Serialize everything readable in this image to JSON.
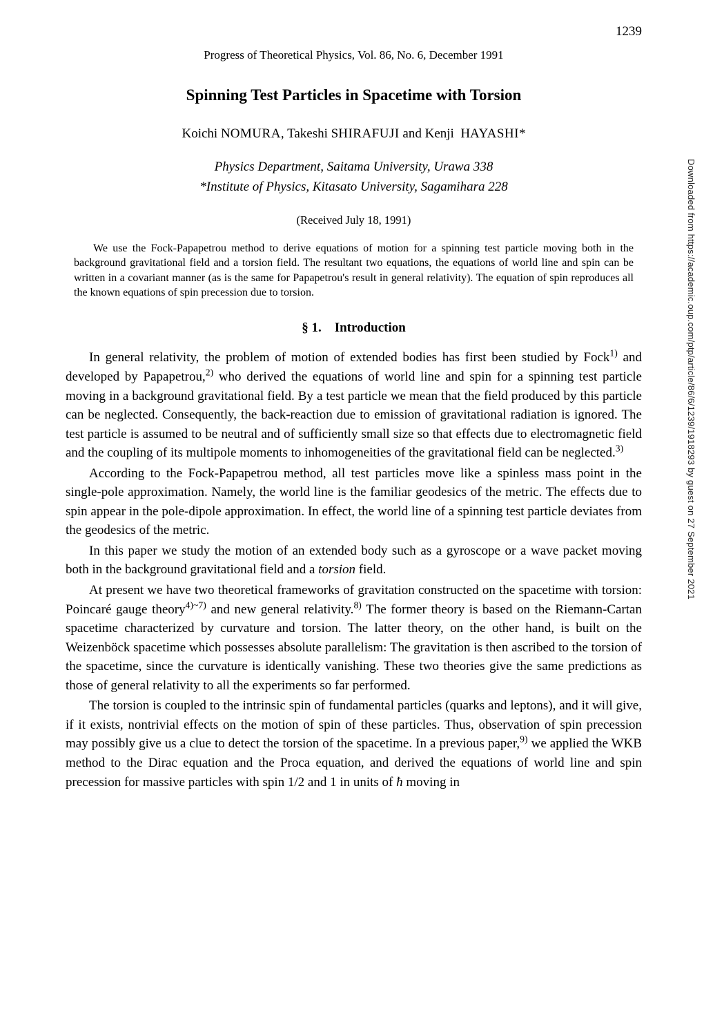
{
  "page_number": "1239",
  "journal_line": "Progress of Theoretical Physics, Vol. 86, No. 6, December 1991",
  "title": "Spinning Test Particles in Spacetime with Torsion",
  "authors_html": "Koichi N<span class='smallcaps'>OMURA</span>, Takeshi S<span class='smallcaps'>HIRAFUJI</span> and Kenji&nbsp;&nbsp;H<span class='smallcaps'>AYASHI</span>*",
  "affiliation1": "Physics Department, Saitama University, Urawa 338",
  "affiliation2": "*Institute of Physics, Kitasato University, Sagamihara 228",
  "received": "(Received July 18, 1991)",
  "abstract": "We use the Fock-Papapetrou method to derive equations of motion for a spinning test particle moving both in the background gravitational field and a torsion field. The resultant two equations, the equations of world line and spin can be written in a covariant manner (as is the same for Papapetrou's result in general relativity). The equation of spin reproduces all the known equations of spin precession due to torsion.",
  "section_heading": "§ 1. Introduction",
  "para1_html": "In general relativity, the problem of motion of extended bodies has first been studied by Fock<sup>1)</sup> and developed by Papapetrou,<sup>2)</sup> who derived the equations of world line and spin for a spinning test particle moving in a background gravitational field. By a test particle we mean that the field produced by this particle can be neglected. Consequently, the back-reaction due to emission of gravitational radiation is ignored. The test particle is assumed to be neutral and of sufficiently small size so that effects due to electromagnetic field and the coupling of its multipole moments to in­homogeneities of the gravitational field can be neglected.<sup>3)</sup>",
  "para2_html": "According to the Fock-Papapetrou method, all test particles move like a spinless mass point in the single-pole approximation. Namely, the world line is the familiar geodesics of the metric. The effects due to spin appear in the pole-dipole approxima­tion. In effect, the world line of a spinning test particle deviates from the geodesics of the metric.",
  "para3_html": "In this paper we study the motion of an extended body such as a gyroscope or a wave packet moving both in the background gravitational field and a <i>torsion</i> field.",
  "para4_html": "At present we have two theoretical frameworks of gravitation constructed on the spacetime with torsion: Poincaré gauge theory<sup>4)~7)</sup> and new general relativity.<sup>8)</sup> The former theory is based on the Riemann-Cartan spacetime characterized by curvature and torsion. The latter theory, on the other hand, is built on the Weizenböck spacetime which possesses absolute parallelism: The gravitation is then ascribed to the torsion of the spacetime, since the curvature is identically vanishing. These two theories give the same predictions as those of general relativity to all the experiments so far performed.",
  "para5_html": "The torsion is coupled to the intrinsic spin of fundamental particles (quarks and leptons), and it will give, if it exists, nontrivial effects on the motion of spin of these particles. Thus, observation of spin precession may possibly give us a clue to detect the torsion of the spacetime. In a previous paper,<sup>9)</sup> we applied the WKB method to the Dirac equation and the Proca equation, and derived the equations of world line and spin precession for massive particles with spin 1/2 and 1 in units of <i>ħ</i> moving in",
  "side_text": "Downloaded from https://academic.oup.com/ptp/article/86/6/1239/1918293 by guest on 27 September 2021"
}
